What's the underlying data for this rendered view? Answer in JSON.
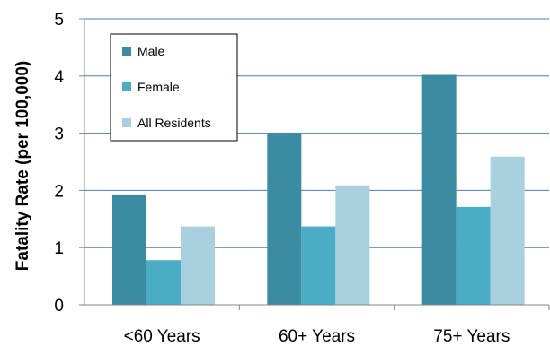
{
  "chart_data": {
    "type": "bar",
    "title": "",
    "xlabel": "",
    "ylabel": "Fatality Rate (per 100,000)",
    "ylim": [
      0,
      5
    ],
    "yticks": [
      "0",
      "1",
      "2",
      "3",
      "4",
      "5"
    ],
    "grid": true,
    "legend_position": "top-left",
    "categories": [
      "<60 Years",
      "60+ Years",
      "75+ Years"
    ],
    "series": [
      {
        "name": "Male",
        "color": "#3b8ba2",
        "values": [
          1.93,
          3.01,
          4.02
        ]
      },
      {
        "name": "Female",
        "color": "#4bacc6",
        "values": [
          0.78,
          1.37,
          1.71
        ]
      },
      {
        "name": "All Residents",
        "color": "#a9d0de",
        "values": [
          1.37,
          2.09,
          2.59
        ]
      }
    ]
  }
}
